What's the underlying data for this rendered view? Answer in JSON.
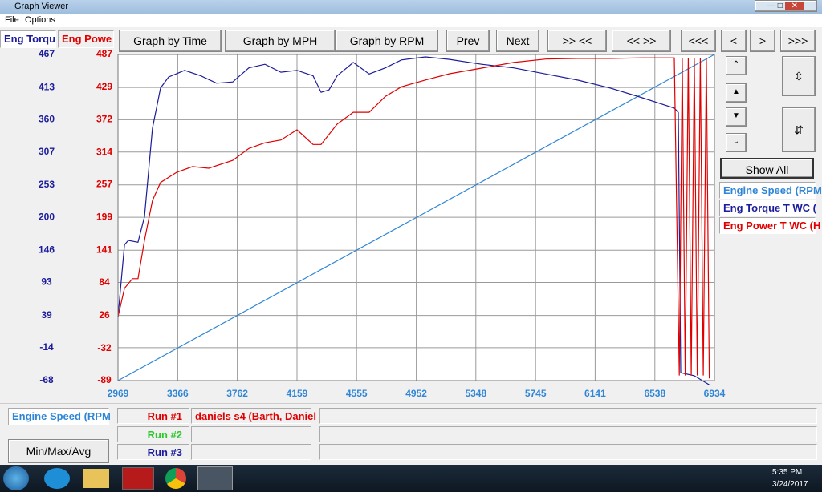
{
  "window": {
    "title": "Graph Viewer",
    "menu": [
      "File",
      "Options"
    ]
  },
  "tabs": [
    "Eng Torqu",
    "Eng Powe"
  ],
  "toolbar": [
    "Graph by Time",
    "Graph by MPH",
    "Graph by RPM",
    "Prev",
    "Next",
    ">> <<",
    "<< >>",
    "<<<",
    "<",
    ">",
    ">>>"
  ],
  "side": {
    "show_all": "Show All"
  },
  "bottom": {
    "runs": [
      {
        "label": "Run #1",
        "name": "daniels s4 (Barth, Daniel"
      },
      {
        "label": "Run #2"
      },
      {
        "label": "Run #3"
      }
    ],
    "button": "Min/Max/Avg"
  },
  "taskbar": {
    "time": "5:35 PM",
    "date": "3/24/2017"
  },
  "chart_data": {
    "type": "line",
    "grid": true,
    "xlim": [
      2969,
      6934
    ],
    "xticks": [
      2969,
      3366,
      3762,
      4159,
      4555,
      4952,
      5348,
      5745,
      6141,
      6538,
      6934
    ],
    "ylim": [
      -68,
      467
    ],
    "yticks": [
      -68,
      -14,
      39,
      93,
      146,
      200,
      253,
      307,
      360,
      413,
      467
    ],
    "y2lim": [
      -89,
      487
    ],
    "y2ticks": [
      -89,
      -32,
      26,
      84,
      141,
      199,
      257,
      314,
      372,
      429,
      487
    ],
    "series": [
      {
        "name": "Engine Speed (RPM",
        "color": "#2f86d6",
        "axis": "x",
        "x": [
          2969,
          6934
        ],
        "values": [
          2969,
          6934
        ]
      },
      {
        "name": "Eng Torque T WC (",
        "color": "#1c1c9c",
        "axis": "y",
        "x": [
          2969,
          3012,
          3038,
          3102,
          3145,
          3198,
          3252,
          3305,
          3412,
          3519,
          3625,
          3732,
          3839,
          3946,
          4052,
          4159,
          4266,
          4319,
          4372,
          4426,
          4533,
          4639,
          4746,
          4853,
          5013,
          5173,
          5386,
          5600,
          5813,
          6027,
          6240,
          6454,
          6667,
          6694,
          6710,
          6800,
          6900
        ],
        "values": [
          37,
          155,
          162,
          159,
          201,
          346,
          412,
          430,
          441,
          432,
          420,
          422,
          445,
          451,
          438,
          441,
          432,
          405,
          409,
          432,
          454,
          435,
          445,
          458,
          463,
          459,
          451,
          445,
          435,
          425,
          412,
          396,
          379,
          372,
          -55,
          -60,
          -75
        ]
      },
      {
        "name": "Eng Power T WC (H",
        "color": "#e00000",
        "axis": "y2",
        "x": [
          2969,
          3012,
          3065,
          3102,
          3145,
          3198,
          3252,
          3359,
          3465,
          3572,
          3732,
          3839,
          3946,
          4052,
          4159,
          4266,
          4319,
          4426,
          4533,
          4639,
          4746,
          4853,
          5013,
          5173,
          5386,
          5600,
          5813,
          6027,
          6240,
          6454,
          6667,
          6700,
          6720,
          6740,
          6760,
          6780,
          6800,
          6820,
          6840,
          6860,
          6880,
          6900
        ],
        "values": [
          24,
          74,
          91,
          91,
          159,
          229,
          261,
          279,
          289,
          286,
          300,
          321,
          331,
          336,
          354,
          328,
          328,
          364,
          385,
          385,
          413,
          430,
          442,
          453,
          463,
          473,
          479,
          480,
          480,
          481,
          481,
          -80,
          481,
          -80,
          481,
          -80,
          481,
          -80,
          481,
          -80,
          481,
          -85
        ]
      }
    ]
  }
}
